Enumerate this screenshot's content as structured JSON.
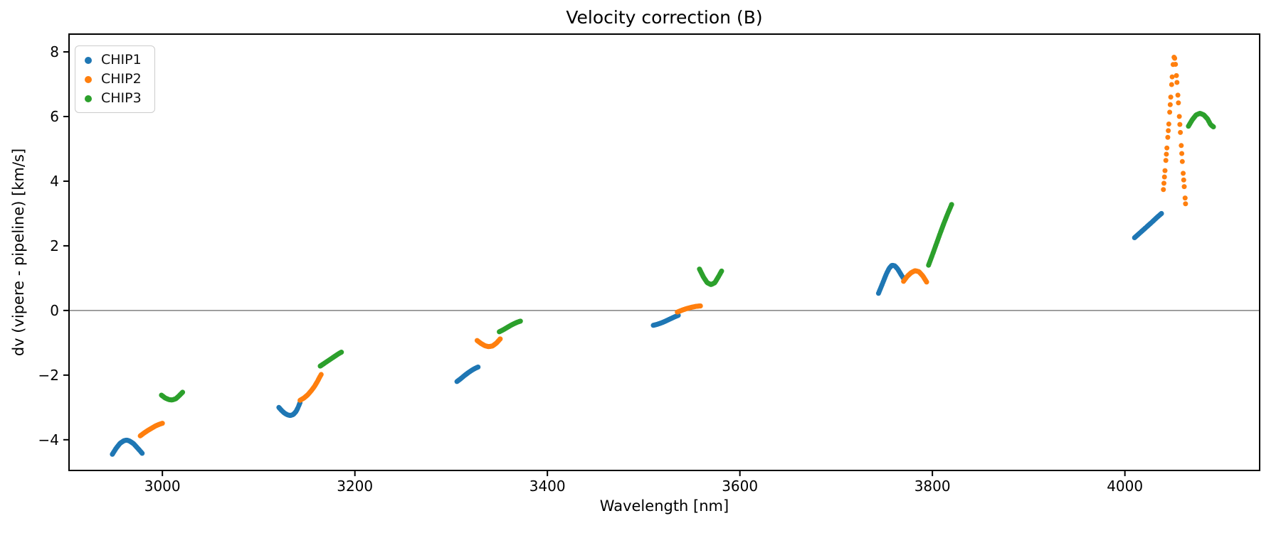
{
  "page": {
    "title": "Velocity correction (B)"
  },
  "chart_data": {
    "type": "scatter",
    "title": "Velocity correction (B)",
    "xlabel": "Wavelength [nm]",
    "ylabel": "dv (vipere - pipeline) [km/s]",
    "xlim": [
      2903,
      4140
    ],
    "ylim": [
      -4.95,
      8.55
    ],
    "xticks": [
      3000,
      3200,
      3400,
      3600,
      3800,
      4000
    ],
    "yticks": [
      8,
      6,
      4,
      2,
      0,
      -2,
      -4
    ],
    "grid": "off",
    "zero_line": {
      "y": 0,
      "color": "#808080"
    },
    "marker_radius_px": 3.5,
    "sample_step_nm": 0.55,
    "legend": {
      "position": "upper-left",
      "entries": [
        {
          "label": "CHIP1",
          "color": "#1f77b4"
        },
        {
          "label": "CHIP2",
          "color": "#ff7f0e"
        },
        {
          "label": "CHIP3",
          "color": "#2ca02c"
        }
      ]
    },
    "series": [
      {
        "name": "CHIP1",
        "color": "#1f77b4",
        "segments": [
          [
            [
              2948,
              -4.45
            ],
            [
              2952,
              -4.26
            ],
            [
              2956,
              -4.11
            ],
            [
              2960,
              -4.03
            ],
            [
              2963,
              -4.01
            ],
            [
              2966,
              -4.04
            ],
            [
              2970,
              -4.12
            ],
            [
              2974,
              -4.25
            ],
            [
              2977,
              -4.35
            ],
            [
              2979,
              -4.42
            ]
          ],
          [
            [
              3121,
              -3.0
            ],
            [
              3124,
              -3.1
            ],
            [
              3127,
              -3.18
            ],
            [
              3130,
              -3.23
            ],
            [
              3133,
              -3.25
            ],
            [
              3136,
              -3.22
            ],
            [
              3139,
              -3.12
            ],
            [
              3141,
              -3.0
            ],
            [
              3143,
              -2.85
            ]
          ],
          [
            [
              3306,
              -2.2
            ],
            [
              3310,
              -2.11
            ],
            [
              3314,
              -2.01
            ],
            [
              3318,
              -1.92
            ],
            [
              3322,
              -1.84
            ],
            [
              3325,
              -1.79
            ],
            [
              3328,
              -1.75
            ]
          ],
          [
            [
              3510,
              -0.46
            ],
            [
              3514,
              -0.43
            ],
            [
              3518,
              -0.39
            ],
            [
              3522,
              -0.34
            ],
            [
              3527,
              -0.27
            ],
            [
              3532,
              -0.2
            ],
            [
              3536,
              -0.15
            ]
          ],
          [
            [
              3744,
              0.53
            ],
            [
              3748,
              0.82
            ],
            [
              3752,
              1.12
            ],
            [
              3755,
              1.3
            ],
            [
              3758,
              1.4
            ],
            [
              3761,
              1.38
            ],
            [
              3764,
              1.28
            ],
            [
              3768,
              1.08
            ],
            [
              3771,
              0.95
            ]
          ],
          [
            [
              4010,
              2.25
            ],
            [
              4016,
              2.41
            ],
            [
              4022,
              2.57
            ],
            [
              4028,
              2.73
            ],
            [
              4033,
              2.87
            ],
            [
              4038,
              3.0
            ]
          ]
        ]
      },
      {
        "name": "CHIP2",
        "color": "#ff7f0e",
        "segments": [
          [
            [
              2977,
              -3.88
            ],
            [
              2981,
              -3.79
            ],
            [
              2985,
              -3.71
            ],
            [
              2989,
              -3.64
            ],
            [
              2993,
              -3.57
            ],
            [
              2997,
              -3.52
            ],
            [
              3000,
              -3.49
            ]
          ],
          [
            [
              3143,
              -2.78
            ],
            [
              3147,
              -2.71
            ],
            [
              3151,
              -2.61
            ],
            [
              3155,
              -2.47
            ],
            [
              3158,
              -2.35
            ],
            [
              3161,
              -2.2
            ],
            [
              3164,
              -2.03
            ],
            [
              3165,
              -1.98
            ]
          ],
          [
            [
              3327,
              -0.93
            ],
            [
              3331,
              -1.02
            ],
            [
              3335,
              -1.09
            ],
            [
              3339,
              -1.12
            ],
            [
              3343,
              -1.1
            ],
            [
              3347,
              -1.01
            ],
            [
              3351,
              -0.88
            ]
          ],
          [
            [
              3535,
              -0.05
            ],
            [
              3540,
              0.01
            ],
            [
              3545,
              0.06
            ],
            [
              3550,
              0.1
            ],
            [
              3555,
              0.13
            ],
            [
              3559,
              0.14
            ]
          ],
          [
            [
              3770,
              0.9
            ],
            [
              3774,
              1.06
            ],
            [
              3778,
              1.17
            ],
            [
              3782,
              1.23
            ],
            [
              3786,
              1.2
            ],
            [
              3790,
              1.07
            ],
            [
              3794,
              0.88
            ]
          ],
          [
            [
              4040,
              3.74
            ],
            [
              4042,
              4.45
            ],
            [
              4044,
              5.15
            ],
            [
              4046,
              5.9
            ],
            [
              4048,
              6.75
            ],
            [
              4049.5,
              7.4
            ],
            [
              4050.5,
              7.78
            ],
            [
              4051.2,
              7.85
            ],
            [
              4052,
              7.78
            ],
            [
              4053,
              7.48
            ],
            [
              4054.5,
              6.9
            ],
            [
              4056,
              6.25
            ],
            [
              4058,
              5.35
            ],
            [
              4060,
              4.45
            ],
            [
              4062,
              3.7
            ],
            [
              4063,
              3.3
            ]
          ]
        ]
      },
      {
        "name": "CHIP3",
        "color": "#2ca02c",
        "segments": [
          [
            [
              2999,
              -2.62
            ],
            [
              3003,
              -2.71
            ],
            [
              3007,
              -2.76
            ],
            [
              3010,
              -2.77
            ],
            [
              3014,
              -2.73
            ],
            [
              3017,
              -2.65
            ],
            [
              3021,
              -2.53
            ]
          ],
          [
            [
              3164,
              -1.72
            ],
            [
              3168,
              -1.64
            ],
            [
              3172,
              -1.56
            ],
            [
              3176,
              -1.48
            ],
            [
              3180,
              -1.4
            ],
            [
              3183,
              -1.34
            ],
            [
              3186,
              -1.29
            ]
          ],
          [
            [
              3350,
              -0.66
            ],
            [
              3354,
              -0.6
            ],
            [
              3358,
              -0.53
            ],
            [
              3362,
              -0.46
            ],
            [
              3366,
              -0.4
            ],
            [
              3369,
              -0.36
            ],
            [
              3372,
              -0.33
            ]
          ],
          [
            [
              3558,
              1.28
            ],
            [
              3562,
              1.04
            ],
            [
              3566,
              0.86
            ],
            [
              3570,
              0.8
            ],
            [
              3574,
              0.86
            ],
            [
              3578,
              1.06
            ],
            [
              3581,
              1.22
            ]
          ],
          [
            [
              3796,
              1.4
            ],
            [
              3800,
              1.72
            ],
            [
              3804,
              2.05
            ],
            [
              3808,
              2.38
            ],
            [
              3812,
              2.7
            ],
            [
              3816,
              3.0
            ],
            [
              3820,
              3.28
            ]
          ],
          [
            [
              4066,
              5.7
            ],
            [
              4070,
              5.9
            ],
            [
              4074,
              6.05
            ],
            [
              4078,
              6.1
            ],
            [
              4082,
              6.05
            ],
            [
              4086,
              5.92
            ],
            [
              4089,
              5.75
            ],
            [
              4092,
              5.68
            ]
          ]
        ]
      }
    ]
  }
}
